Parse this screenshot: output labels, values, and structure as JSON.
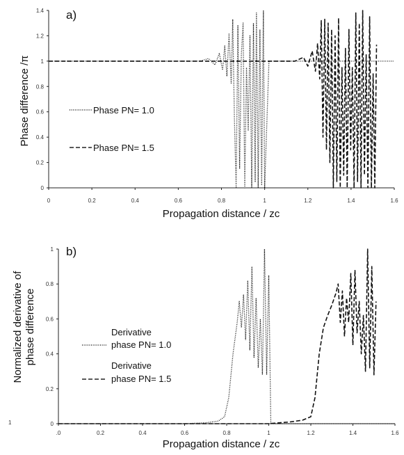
{
  "chart_data": [
    {
      "type": "line",
      "panel_label": "a)",
      "xlabel": "Propagation distance / zc",
      "ylabel": "Phase difference /π",
      "xlim": [
        0,
        1.6
      ],
      "ylim": [
        0,
        1.4
      ],
      "x_ticks": [
        "0",
        "0.2",
        "0.4",
        "0.6",
        "0.8",
        "1",
        "1.2",
        "1.4",
        "1.6"
      ],
      "y_ticks": [
        "0",
        "0.2",
        "0.4",
        "0.6",
        "0.8",
        "1",
        "1.2",
        "1.4"
      ],
      "grid": false,
      "legend_position": "left",
      "series": [
        {
          "name": "Phase PN= 1.0",
          "style": "dotted",
          "x": [
            0,
            0.7,
            0.74,
            0.77,
            0.79,
            0.805,
            0.815,
            0.825,
            0.835,
            0.845,
            0.852,
            0.86,
            0.868,
            0.876,
            0.884,
            0.892,
            0.9,
            0.908,
            0.916,
            0.924,
            0.932,
            0.94,
            0.948,
            0.956,
            0.962,
            0.97,
            0.978,
            0.986,
            0.994,
            1.0,
            1.02,
            1.6
          ],
          "y": [
            1.0,
            1.0,
            1.02,
            0.97,
            1.06,
            0.93,
            1.12,
            0.88,
            1.22,
            0.82,
            1.33,
            0.55,
            0.0,
            1.28,
            0.15,
            1.05,
            1.3,
            0.0,
            0.95,
            0.45,
            1.2,
            0.0,
            1.3,
            0.05,
            1.38,
            0.0,
            1.25,
            0.02,
            1.4,
            0.0,
            1.0,
            1.0
          ]
        },
        {
          "name": "Phase PN= 1.5",
          "style": "dashed",
          "x": [
            0,
            1.14,
            1.18,
            1.2,
            1.22,
            1.235,
            1.245,
            1.255,
            1.262,
            1.27,
            1.278,
            1.286,
            1.294,
            1.302,
            1.31,
            1.318,
            1.326,
            1.334,
            1.342,
            1.35,
            1.358,
            1.366,
            1.374,
            1.382,
            1.39,
            1.398,
            1.406,
            1.414,
            1.422,
            1.43,
            1.438,
            1.446,
            1.454,
            1.462,
            1.47,
            1.478,
            1.486,
            1.494,
            1.502,
            1.51,
            1.518
          ],
          "y": [
            1.0,
            1.0,
            1.03,
            0.96,
            1.08,
            0.92,
            1.14,
            0.86,
            1.32,
            0.4,
            1.33,
            0.3,
            1.3,
            0.2,
            1.25,
            0.0,
            1.2,
            0.05,
            1.34,
            0.0,
            0.95,
            0.1,
            1.1,
            0.0,
            1.25,
            0.3,
            0.95,
            0.0,
            1.38,
            0.05,
            1.3,
            0.0,
            1.4,
            0.1,
            1.05,
            0.0,
            1.35,
            0.0,
            0.9,
            0.0,
            1.13
          ]
        }
      ]
    },
    {
      "type": "line",
      "panel_label": "b)",
      "xlabel": "Propagation distance / zc",
      "ylabel": "Normalized derivative of phase difference",
      "xlim": [
        0,
        1.6
      ],
      "ylim": [
        0,
        1.0
      ],
      "x_ticks": [
        ".0",
        "0.2",
        "0.4",
        "0.6",
        "0.8",
        "1",
        "1.2",
        "1.4",
        "1.6"
      ],
      "y_ticks": [
        "0",
        "0.2",
        "0.4",
        "0.6",
        "0.8",
        "1"
      ],
      "grid": false,
      "legend_position": "left",
      "series": [
        {
          "name": "Derivative phase PN= 1.0",
          "style": "dotted",
          "x": [
            0,
            0.6,
            0.7,
            0.76,
            0.79,
            0.81,
            0.83,
            0.85,
            0.86,
            0.87,
            0.88,
            0.89,
            0.9,
            0.91,
            0.92,
            0.93,
            0.94,
            0.95,
            0.96,
            0.97,
            0.98,
            0.99,
            1.0,
            1.01,
            1.6
          ],
          "y": [
            0,
            0.0,
            0.005,
            0.015,
            0.04,
            0.15,
            0.4,
            0.58,
            0.7,
            0.55,
            0.74,
            0.48,
            0.82,
            0.42,
            0.9,
            0.38,
            0.72,
            0.32,
            0.6,
            0.28,
            1.0,
            0.28,
            0.85,
            0.0,
            0.0
          ]
        },
        {
          "name": "Derivative phase PN= 1.5",
          "style": "dashed",
          "x": [
            0,
            1.0,
            1.1,
            1.16,
            1.2,
            1.22,
            1.24,
            1.26,
            1.28,
            1.3,
            1.32,
            1.33,
            1.34,
            1.35,
            1.36,
            1.37,
            1.38,
            1.39,
            1.4,
            1.41,
            1.42,
            1.43,
            1.44,
            1.45,
            1.46,
            1.47,
            1.48,
            1.49,
            1.5,
            1.51
          ],
          "y": [
            0,
            0.0,
            0.01,
            0.02,
            0.04,
            0.15,
            0.4,
            0.55,
            0.62,
            0.68,
            0.75,
            0.8,
            0.58,
            0.76,
            0.5,
            0.72,
            0.58,
            0.86,
            0.45,
            0.88,
            0.52,
            0.7,
            0.4,
            0.62,
            0.3,
            1.0,
            0.32,
            0.9,
            0.28,
            0.7
          ]
        }
      ]
    }
  ]
}
